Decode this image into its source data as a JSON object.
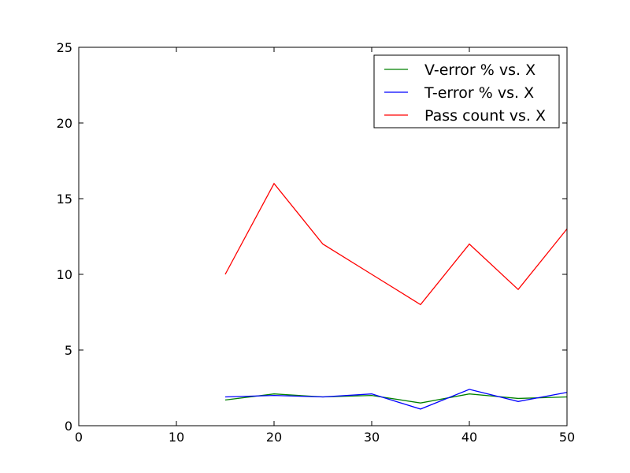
{
  "chart_data": {
    "type": "line",
    "title": "",
    "xlabel": "",
    "ylabel": "",
    "xlim": [
      0,
      50
    ],
    "ylim": [
      0,
      25
    ],
    "x_ticks": [
      0,
      10,
      20,
      30,
      40,
      50
    ],
    "y_ticks": [
      0,
      5,
      10,
      15,
      20,
      25
    ],
    "x_tick_labels": [
      "0",
      "10",
      "20",
      "30",
      "40",
      "50"
    ],
    "y_tick_labels": [
      "0",
      "5",
      "10",
      "15",
      "20",
      "25"
    ],
    "grid": false,
    "legend_position": "top-right",
    "x": [
      15,
      20,
      25,
      30,
      35,
      40,
      45,
      50
    ],
    "series": [
      {
        "name": "V-error % vs. X",
        "color": "#008000",
        "values": [
          1.7,
          2.1,
          1.9,
          2.0,
          1.5,
          2.1,
          1.8,
          1.9
        ]
      },
      {
        "name": "T-error % vs. X",
        "color": "#0000ff",
        "values": [
          1.9,
          2.0,
          1.9,
          2.1,
          1.1,
          2.4,
          1.6,
          2.2
        ]
      },
      {
        "name": "Pass count vs. X",
        "color": "#ff0000",
        "values": [
          10,
          16,
          12,
          10,
          8,
          12,
          9,
          13
        ]
      }
    ]
  }
}
